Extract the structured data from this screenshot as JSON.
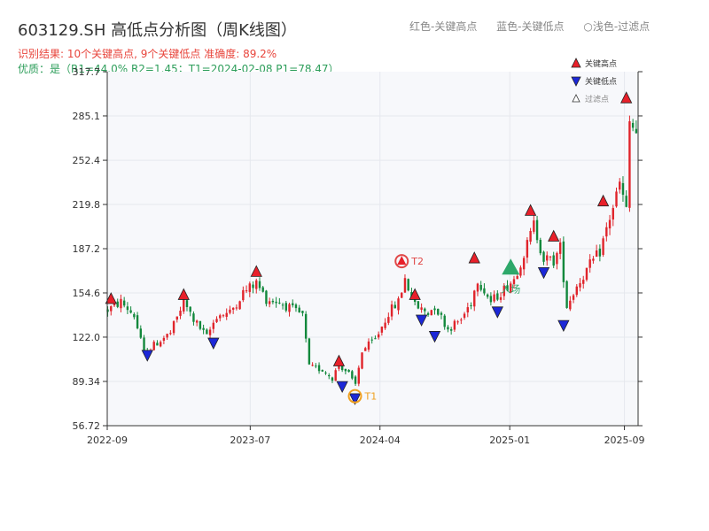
{
  "header": {
    "title": "603129.SH 高低点分析图（周K线图）",
    "legend_red": "红色-关键高点",
    "legend_blue": "蓝色-关键低点",
    "legend_light": "○浅色-过滤点",
    "result_line": "识别结果: 10个关键高点, 9个关键低点  准确度: 89.2%",
    "quality_line": "优质：是（R1=44.0%  R2=1.45；T1=2024-02-08 P1=78.47）"
  },
  "colors": {
    "up": "#e0242b",
    "down": "#12883c",
    "high_marker": "#e8202a",
    "low_marker": "#1c28d8",
    "t1": "#f0a020",
    "t2": "#e04848",
    "entry": "#2ea86a",
    "plot_bg": "#f7f8fb"
  },
  "chart_data": {
    "type": "candlestick",
    "title": "603129.SH 高低点分析图（周K线图）",
    "ylim": [
      56.72,
      317.7
    ],
    "y_ticks": [
      "56.72",
      "89.34",
      "122.0",
      "154.6",
      "187.2",
      "219.8",
      "252.4",
      "285.1",
      "317.7"
    ],
    "x_ticks": [
      "2022-09",
      "2023-07",
      "2024-04",
      "2025-01",
      "2025-09"
    ],
    "x_start": "2022-09-01",
    "x_end": "2025-09-30",
    "legend": [
      "关键高点",
      "关键低点",
      "过滤点"
    ],
    "legend_position": "top-right",
    "path": [
      [
        "2022-09-02",
        142
      ],
      [
        "2022-09-30",
        148
      ],
      [
        "2022-10-28",
        138
      ],
      [
        "2022-11-18",
        110
      ],
      [
        "2022-12-16",
        118
      ],
      [
        "2023-01-13",
        125
      ],
      [
        "2023-02-10",
        148
      ],
      [
        "2023-03-03",
        135
      ],
      [
        "2023-03-31",
        122
      ],
      [
        "2023-04-21",
        138
      ],
      [
        "2023-05-19",
        140
      ],
      [
        "2023-06-16",
        155
      ],
      [
        "2023-07-14",
        162
      ],
      [
        "2023-08-04",
        150
      ],
      [
        "2023-09-01",
        148
      ],
      [
        "2023-09-29",
        142
      ],
      [
        "2023-10-20",
        138
      ],
      [
        "2023-11-03",
        100
      ],
      [
        "2023-12-01",
        98
      ],
      [
        "2023-12-22",
        92
      ],
      [
        "2024-01-05",
        102
      ],
      [
        "2024-01-26",
        95
      ],
      [
        "2024-02-08",
        85
      ],
      [
        "2024-02-23",
        112
      ],
      [
        "2024-03-22",
        120
      ],
      [
        "2024-04-19",
        140
      ],
      [
        "2024-05-10",
        148
      ],
      [
        "2024-05-24",
        165
      ],
      [
        "2024-06-14",
        145
      ],
      [
        "2024-07-12",
        140
      ],
      [
        "2024-07-26",
        145
      ],
      [
        "2024-08-23",
        128
      ],
      [
        "2024-09-20",
        135
      ],
      [
        "2024-10-11",
        148
      ],
      [
        "2024-10-25",
        165
      ],
      [
        "2024-11-22",
        148
      ],
      [
        "2024-12-13",
        155
      ],
      [
        "2025-01-10",
        165
      ],
      [
        "2025-02-07",
        190
      ],
      [
        "2025-02-21",
        205
      ],
      [
        "2025-03-14",
        180
      ],
      [
        "2025-04-04",
        178
      ],
      [
        "2025-04-18",
        188
      ],
      [
        "2025-05-02",
        145
      ],
      [
        "2025-05-23",
        160
      ],
      [
        "2025-06-20",
        175
      ],
      [
        "2025-07-11",
        185
      ],
      [
        "2025-08-01",
        210
      ],
      [
        "2025-08-22",
        235
      ],
      [
        "2025-09-05",
        215
      ],
      [
        "2025-09-12",
        280
      ],
      [
        "2025-09-26",
        272
      ]
    ],
    "key_highs": [
      [
        "2022-09-09",
        150
      ],
      [
        "2023-02-10",
        153
      ],
      [
        "2023-07-14",
        170
      ],
      [
        "2024-01-05",
        104
      ],
      [
        "2024-06-14",
        153
      ],
      [
        "2024-10-18",
        180
      ],
      [
        "2025-02-14",
        215
      ],
      [
        "2025-04-04",
        196
      ],
      [
        "2025-07-18",
        222
      ],
      [
        "2025-09-05",
        298
      ]
    ],
    "key_lows": [
      [
        "2022-11-25",
        109
      ],
      [
        "2023-04-14",
        118
      ],
      [
        "2024-01-12",
        86
      ],
      [
        "2024-02-08",
        77
      ],
      [
        "2024-06-28",
        135
      ],
      [
        "2024-07-26",
        123
      ],
      [
        "2024-12-06",
        141
      ],
      [
        "2025-03-14",
        170
      ],
      [
        "2025-04-25",
        131
      ]
    ],
    "filtered_legend_only": true,
    "T1": {
      "date": "2024-02-08",
      "price": 78.47,
      "label": "T1"
    },
    "T2": {
      "date": "2024-05-17",
      "price": 178,
      "label": "T2"
    },
    "entry": {
      "date": "2025-01-03",
      "price": 172,
      "label": "入场"
    }
  }
}
